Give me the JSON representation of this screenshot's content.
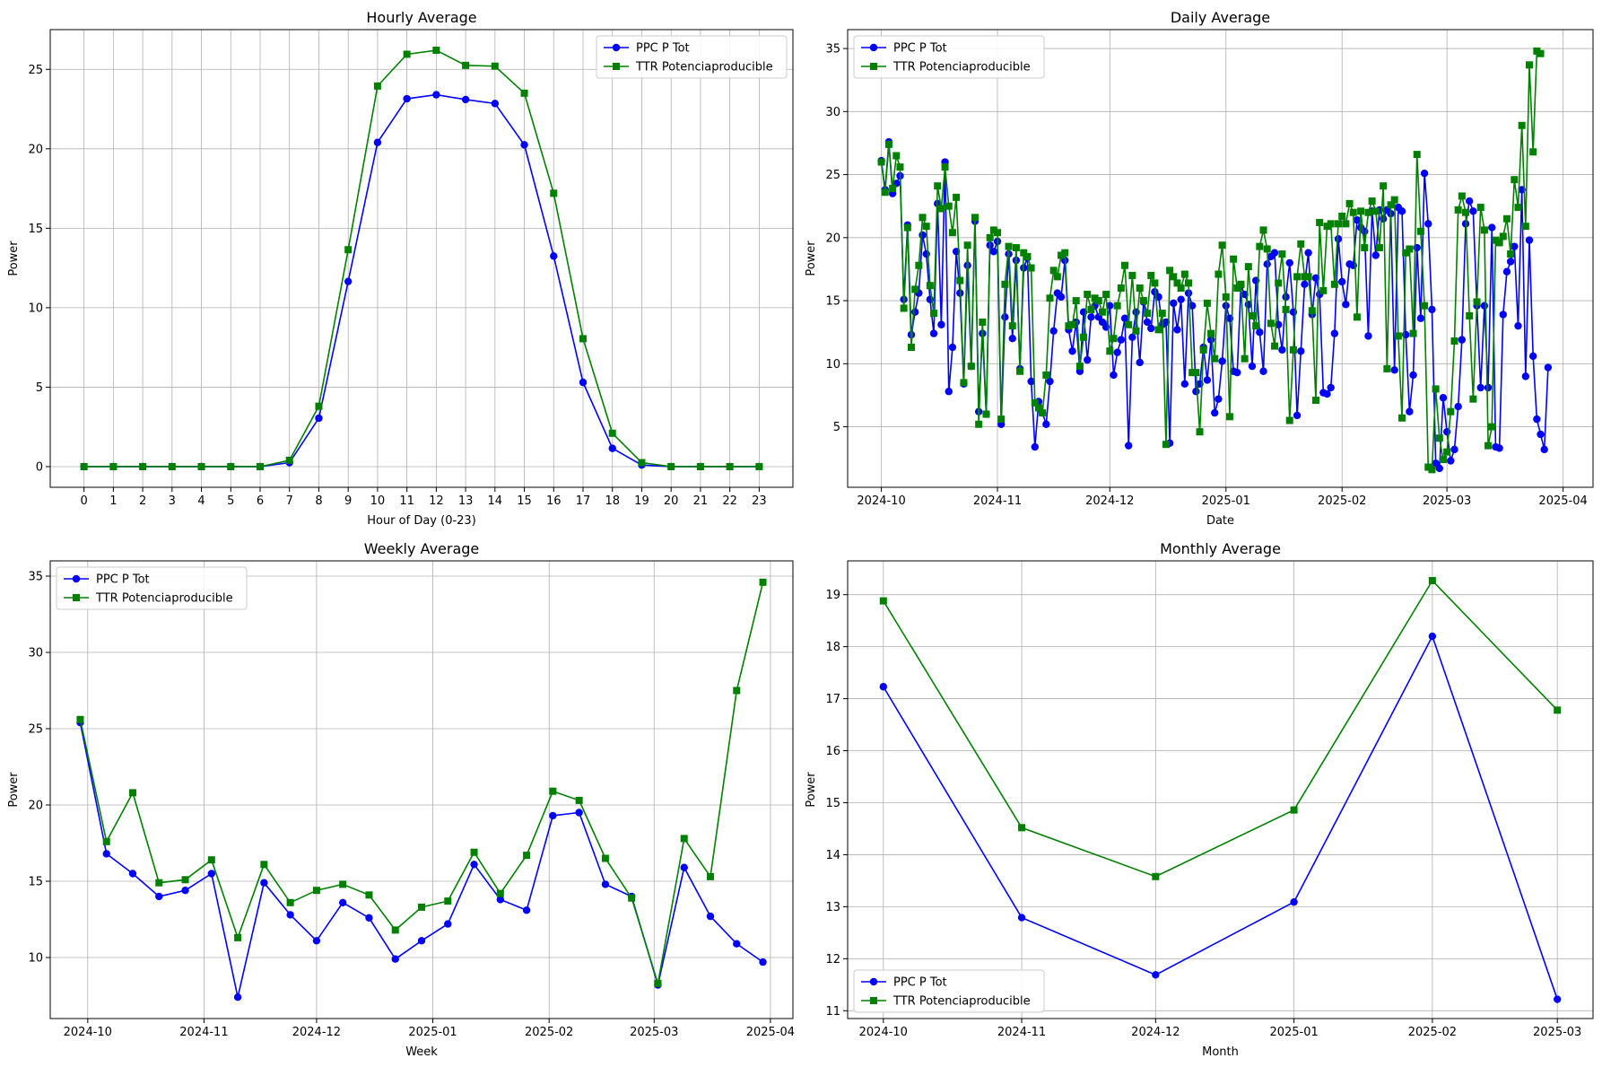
{
  "chart_data": [
    {
      "id": "hourly",
      "type": "line",
      "title": "Hourly Average",
      "xlabel": "Hour of Day (0-23)",
      "ylabel": "Power",
      "x_type": "linear",
      "xlim": [
        -1.15,
        24.15
      ],
      "ylim": [
        -1.3,
        27.5
      ],
      "xticks": [
        0,
        1,
        2,
        3,
        4,
        5,
        6,
        7,
        8,
        9,
        10,
        11,
        12,
        13,
        14,
        15,
        16,
        17,
        18,
        19,
        20,
        21,
        22,
        23
      ],
      "yticks": [
        0,
        5,
        10,
        15,
        20,
        25
      ],
      "grid": true,
      "legend": "top-right",
      "x": [
        0,
        1,
        2,
        3,
        4,
        5,
        6,
        7,
        8,
        9,
        10,
        11,
        12,
        13,
        14,
        15,
        16,
        17,
        18,
        19,
        20,
        21,
        22,
        23
      ],
      "series": [
        {
          "name": "PPC P Tot",
          "color": "#0000ff",
          "marker": "circle",
          "values": [
            0,
            0,
            0,
            0,
            0,
            0,
            0,
            0.25,
            3.05,
            11.65,
            20.4,
            23.15,
            23.4,
            23.1,
            22.85,
            20.25,
            13.25,
            5.3,
            1.15,
            0.1,
            0,
            0,
            0,
            0
          ]
        },
        {
          "name": "TTR Potenciaproducible",
          "color": "#008000",
          "marker": "square",
          "values": [
            0,
            0,
            0,
            0,
            0,
            0,
            0,
            0.4,
            3.8,
            13.65,
            23.95,
            25.95,
            26.2,
            25.25,
            25.2,
            23.5,
            17.2,
            8.05,
            2.1,
            0.25,
            0,
            0,
            0,
            0
          ]
        }
      ]
    },
    {
      "id": "daily",
      "type": "line",
      "title": "Daily Average",
      "xlabel": "Date",
      "ylabel": "Power",
      "x_type": "date",
      "xlim": [
        "2024-09-22",
        "2025-04-09"
      ],
      "ylim": [
        0.2,
        36.5
      ],
      "xticks": [
        "2024-10-01",
        "2024-11-01",
        "2024-12-01",
        "2025-01-01",
        "2025-02-01",
        "2025-03-01",
        "2025-04-01"
      ],
      "yticks": [
        5,
        10,
        15,
        20,
        25,
        30,
        35
      ],
      "grid": true,
      "legend": "top-left",
      "x_start": "2024-10-01",
      "series": [
        {
          "name": "PPC P Tot",
          "color": "#0000ff",
          "marker": "circle",
          "values": [
            26.1,
            23.8,
            27.6,
            23.5,
            24.3,
            24.9,
            15.1,
            21.0,
            12.3,
            14.1,
            15.6,
            20.2,
            18.7,
            15.1,
            12.4,
            22.7,
            13.1,
            26.0,
            7.8,
            11.3,
            18.9,
            15.6,
            8.4,
            17.8,
            9.8,
            21.3,
            6.2,
            12.4,
            6.0,
            19.4,
            18.9,
            19.7,
            5.2,
            13.7,
            18.7,
            12.0,
            18.2,
            9.6,
            17.6,
            18.4,
            8.6,
            3.4,
            7.0,
            6.1,
            5.2,
            8.6,
            12.6,
            15.6,
            15.3,
            18.2,
            12.7,
            11.0,
            13.3,
            9.4,
            14.1,
            10.3,
            13.7,
            14.6,
            13.7,
            13.3,
            12.9,
            14.6,
            9.1,
            10.9,
            11.9,
            13.6,
            3.5,
            12.1,
            14.1,
            10.1,
            14.9,
            13.3,
            12.8,
            15.7,
            15.3,
            13.1,
            13.3,
            3.7,
            14.8,
            12.7,
            15.1,
            8.4,
            15.6,
            14.6,
            7.8,
            8.4,
            11.3,
            8.7,
            11.9,
            6.1,
            7.2,
            10.2,
            14.6,
            13.6,
            9.4,
            9.3,
            16.2,
            15.5,
            14.7,
            9.8,
            16.6,
            12.5,
            9.4,
            17.9,
            18.5,
            18.8,
            13.1,
            11.1,
            15.3,
            18.0,
            14.1,
            5.9,
            11.0,
            16.3,
            18.8,
            13.9,
            16.8,
            15.5,
            7.7,
            7.6,
            8.1,
            12.4,
            19.9,
            16.5,
            14.7,
            17.9,
            17.8,
            21.4,
            20.8,
            20.5,
            12.2,
            22.1,
            18.6,
            22.2,
            21.5,
            22.2,
            21.9,
            9.5,
            22.4,
            22.1,
            12.3,
            6.2,
            9.1,
            19.2,
            13.6,
            25.1,
            21.1,
            14.3,
            2.1,
            1.7,
            7.3,
            4.6,
            2.3,
            3.2,
            6.6,
            11.9,
            21.1,
            22.9,
            22.1,
            14.6,
            8.1,
            14.6,
            8.1,
            20.8,
            3.4,
            3.3,
            13.9,
            17.3,
            18.1,
            19.3,
            13.0,
            23.8,
            9.0,
            19.8,
            10.6,
            5.6,
            4.4,
            3.2,
            9.7
          ]
        },
        {
          "name": "TTR Potenciaproducible",
          "color": "#008000",
          "marker": "square",
          "values": [
            26.0,
            23.6,
            27.4,
            23.9,
            26.5,
            25.6,
            14.4,
            20.8,
            11.3,
            15.9,
            17.8,
            21.6,
            20.9,
            16.2,
            14.0,
            24.1,
            22.3,
            25.6,
            22.5,
            20.4,
            23.2,
            16.6,
            8.5,
            19.4,
            9.8,
            21.6,
            5.2,
            13.3,
            6.0,
            20.0,
            20.6,
            20.4,
            5.6,
            16.3,
            19.3,
            13.0,
            19.2,
            9.4,
            18.8,
            18.5,
            17.6,
            6.9,
            6.5,
            6.1,
            9.1,
            15.2,
            17.4,
            16.9,
            18.6,
            18.8,
            13.0,
            13.1,
            15.0,
            9.8,
            12.1,
            15.5,
            14.3,
            15.2,
            15.0,
            14.1,
            15.5,
            11.0,
            12.0,
            14.6,
            16.0,
            17.8,
            13.1,
            17.0,
            12.6,
            16.0,
            15.0,
            14.0,
            17.0,
            16.4,
            12.7,
            14.0,
            3.6,
            17.4,
            16.9,
            16.4,
            16.0,
            17.1,
            16.4,
            9.3,
            9.3,
            4.6,
            11.1,
            14.8,
            12.4,
            10.4,
            17.1,
            19.4,
            15.3,
            5.8,
            18.3,
            16.0,
            16.3,
            10.4,
            17.7,
            13.8,
            13.0,
            19.3,
            20.6,
            19.1,
            13.2,
            11.4,
            16.4,
            18.7,
            14.3,
            5.5,
            11.1,
            16.9,
            19.5,
            16.9,
            16.9,
            14.2,
            7.1,
            21.2,
            15.8,
            20.9,
            21.1,
            16.3,
            21.1,
            21.7,
            21.1,
            22.7,
            22.0,
            13.7,
            22.1,
            19.2,
            22.0,
            22.9,
            22.1,
            19.2,
            24.1,
            9.6,
            22.6,
            23.0,
            12.2,
            5.7,
            18.8,
            19.1,
            12.4,
            26.6,
            20.5,
            14.6,
            1.8,
            1.6,
            8.0,
            4.1,
            2.4,
            3.0,
            6.2,
            11.8,
            22.2,
            23.3,
            22.0,
            13.8,
            7.2,
            14.9,
            22.4,
            20.6,
            3.5,
            5.0,
            19.8,
            19.6,
            20.1,
            21.5,
            18.7,
            24.6,
            22.4,
            28.9,
            20.9,
            33.7,
            26.8,
            34.8,
            34.6
          ]
        }
      ]
    },
    {
      "id": "weekly",
      "type": "line",
      "title": "Weekly Average",
      "xlabel": "Week",
      "ylabel": "Power",
      "x_type": "date",
      "xlim": [
        "2024-09-21",
        "2025-04-07"
      ],
      "ylim": [
        6.0,
        36.0
      ],
      "xticks": [
        "2024-10-01",
        "2024-11-01",
        "2024-12-01",
        "2025-01-01",
        "2025-02-01",
        "2025-03-01",
        "2025-04-01"
      ],
      "yticks": [
        10,
        15,
        20,
        25,
        30,
        35
      ],
      "grid": true,
      "legend": "top-left",
      "x": [
        "2024-09-29",
        "2024-10-06",
        "2024-10-13",
        "2024-10-20",
        "2024-10-27",
        "2024-11-03",
        "2024-11-10",
        "2024-11-17",
        "2024-11-24",
        "2024-12-01",
        "2024-12-08",
        "2024-12-15",
        "2024-12-22",
        "2024-12-29",
        "2025-01-05",
        "2025-01-12",
        "2025-01-19",
        "2025-01-26",
        "2025-02-02",
        "2025-02-09",
        "2025-02-16",
        "2025-02-23",
        "2025-03-02",
        "2025-03-09",
        "2025-03-16",
        "2025-03-23",
        "2025-03-30"
      ],
      "series": [
        {
          "name": "PPC P Tot",
          "color": "#0000ff",
          "marker": "circle",
          "values": [
            25.4,
            16.8,
            15.5,
            14.0,
            14.4,
            15.5,
            7.4,
            14.9,
            12.8,
            11.1,
            13.6,
            12.6,
            9.9,
            11.1,
            12.2,
            16.1,
            13.8,
            13.1,
            19.3,
            19.5,
            14.8,
            14.0,
            8.2,
            15.9,
            12.7,
            10.9,
            9.7
          ]
        },
        {
          "name": "TTR Potenciaproducible",
          "color": "#008000",
          "marker": "square",
          "values": [
            25.6,
            17.6,
            20.8,
            14.9,
            15.1,
            16.4,
            11.3,
            16.1,
            13.6,
            14.4,
            14.8,
            14.1,
            11.8,
            13.3,
            13.7,
            16.9,
            14.2,
            16.7,
            20.9,
            20.3,
            16.5,
            13.9,
            8.3,
            17.8,
            15.3,
            27.5,
            34.6
          ]
        }
      ]
    },
    {
      "id": "monthly",
      "type": "line",
      "title": "Monthly Average",
      "xlabel": "Month",
      "ylabel": "Power",
      "x_type": "date",
      "xlim": [
        "2024-09-23",
        "2025-03-09"
      ],
      "ylim": [
        10.85,
        19.65
      ],
      "xticks": [
        "2024-10-01",
        "2024-11-01",
        "2024-12-01",
        "2025-01-01",
        "2025-02-01",
        "2025-03-01"
      ],
      "yticks": [
        11,
        12,
        13,
        14,
        15,
        16,
        17,
        18,
        19
      ],
      "grid": true,
      "legend": "bottom-left",
      "x": [
        "2024-10-01",
        "2024-11-01",
        "2024-12-01",
        "2025-01-01",
        "2025-02-01",
        "2025-03-01"
      ],
      "series": [
        {
          "name": "PPC P Tot",
          "color": "#0000ff",
          "marker": "circle",
          "values": [
            17.23,
            12.79,
            11.69,
            13.09,
            18.2,
            11.22
          ]
        },
        {
          "name": "TTR Potenciaproducible",
          "color": "#008000",
          "marker": "square",
          "values": [
            18.88,
            14.52,
            13.58,
            14.86,
            19.27,
            16.78
          ]
        }
      ]
    }
  ]
}
